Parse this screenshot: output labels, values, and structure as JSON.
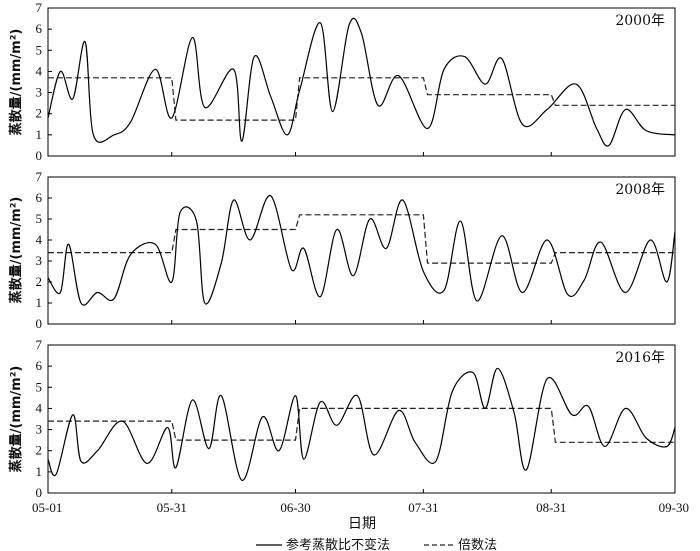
{
  "chart_data": {
    "type": "line",
    "xlabel": "日期",
    "ylabel": "蒸散量/(mm/m²)",
    "x_ticks": [
      "05-01",
      "05-31",
      "06-30",
      "07-31",
      "08-31",
      "09-30"
    ],
    "ylim": [
      0,
      7
    ],
    "y_ticks": [
      0,
      1,
      2,
      3,
      4,
      5,
      6,
      7
    ],
    "legend": [
      {
        "name": "参考蒸散比不变法",
        "style": "solid"
      },
      {
        "name": "倍数法",
        "style": "dashed"
      }
    ],
    "legend_position": "bottom-center",
    "panels": [
      {
        "title": "2000年",
        "dashed_steps": [
          {
            "from": "05-01",
            "to": "05-31",
            "value": 3.7
          },
          {
            "from": "06-01",
            "to": "06-30",
            "value": 1.7
          },
          {
            "from": "07-01",
            "to": "07-31",
            "value": 3.7
          },
          {
            "from": "08-01",
            "to": "08-31",
            "value": 2.9
          },
          {
            "from": "09-01",
            "to": "09-30",
            "value": 2.4
          }
        ],
        "solid_key_points": [
          [
            0,
            1.8
          ],
          [
            3,
            4.0
          ],
          [
            6,
            2.7
          ],
          [
            9,
            5.4
          ],
          [
            11,
            1.0
          ],
          [
            16,
            1.0
          ],
          [
            20,
            1.6
          ],
          [
            26,
            4.1
          ],
          [
            30,
            1.8
          ],
          [
            35,
            5.6
          ],
          [
            38,
            2.3
          ],
          [
            45,
            4.1
          ],
          [
            47,
            0.7
          ],
          [
            50,
            4.7
          ],
          [
            54,
            2.8
          ],
          [
            58,
            1.0
          ],
          [
            61,
            3.1
          ],
          [
            66,
            6.3
          ],
          [
            69,
            2.1
          ],
          [
            73,
            6.2
          ],
          [
            76,
            5.8
          ],
          [
            80,
            2.4
          ],
          [
            85,
            3.8
          ],
          [
            92,
            1.3
          ],
          [
            96,
            4.1
          ],
          [
            101,
            4.7
          ],
          [
            106,
            3.4
          ],
          [
            110,
            4.6
          ],
          [
            115,
            1.5
          ],
          [
            121,
            2.2
          ],
          [
            128,
            3.4
          ],
          [
            133,
            1.3
          ],
          [
            136,
            0.5
          ],
          [
            140,
            2.2
          ],
          [
            145,
            1.2
          ],
          [
            152,
            1.0
          ]
        ]
      },
      {
        "title": "2008年",
        "dashed_steps": [
          {
            "from": "05-01",
            "to": "05-31",
            "value": 3.4
          },
          {
            "from": "06-01",
            "to": "06-30",
            "value": 4.5
          },
          {
            "from": "07-01",
            "to": "07-31",
            "value": 5.2
          },
          {
            "from": "08-01",
            "to": "08-31",
            "value": 2.9
          },
          {
            "from": "09-01",
            "to": "09-30",
            "value": 3.4
          }
        ],
        "solid_key_points": [
          [
            0,
            2.2
          ],
          [
            3,
            1.5
          ],
          [
            5,
            3.8
          ],
          [
            8,
            1.0
          ],
          [
            12,
            1.5
          ],
          [
            16,
            1.2
          ],
          [
            20,
            3.3
          ],
          [
            26,
            3.8
          ],
          [
            30,
            2.0
          ],
          [
            32,
            5.3
          ],
          [
            36,
            4.9
          ],
          [
            38,
            1.0
          ],
          [
            42,
            2.9
          ],
          [
            45,
            5.9
          ],
          [
            49,
            4.0
          ],
          [
            54,
            6.1
          ],
          [
            59,
            2.6
          ],
          [
            62,
            3.6
          ],
          [
            66,
            1.3
          ],
          [
            70,
            4.5
          ],
          [
            74,
            2.3
          ],
          [
            78,
            5.0
          ],
          [
            82,
            3.6
          ],
          [
            86,
            5.9
          ],
          [
            91,
            2.5
          ],
          [
            96,
            1.6
          ],
          [
            100,
            4.9
          ],
          [
            104,
            1.1
          ],
          [
            110,
            4.2
          ],
          [
            115,
            1.5
          ],
          [
            121,
            4.0
          ],
          [
            126,
            1.4
          ],
          [
            130,
            2.1
          ],
          [
            134,
            3.9
          ],
          [
            140,
            1.5
          ],
          [
            146,
            4.0
          ],
          [
            150,
            2.0
          ],
          [
            152,
            4.4
          ]
        ]
      },
      {
        "title": "2016年",
        "dashed_steps": [
          {
            "from": "05-01",
            "to": "05-31",
            "value": 3.4
          },
          {
            "from": "06-01",
            "to": "06-30",
            "value": 2.5
          },
          {
            "from": "07-01",
            "to": "07-31",
            "value": 4.0
          },
          {
            "from": "08-01",
            "to": "08-31",
            "value": 4.0
          },
          {
            "from": "09-01",
            "to": "09-30",
            "value": 2.4
          }
        ],
        "solid_key_points": [
          [
            0,
            1.6
          ],
          [
            2,
            0.9
          ],
          [
            6,
            3.7
          ],
          [
            8,
            1.5
          ],
          [
            12,
            2.0
          ],
          [
            18,
            3.4
          ],
          [
            24,
            1.4
          ],
          [
            29,
            3.1
          ],
          [
            31,
            1.2
          ],
          [
            35,
            4.4
          ],
          [
            39,
            2.1
          ],
          [
            42,
            4.6
          ],
          [
            47,
            0.6
          ],
          [
            52,
            3.6
          ],
          [
            56,
            2.0
          ],
          [
            60,
            4.6
          ],
          [
            62,
            1.6
          ],
          [
            66,
            4.3
          ],
          [
            70,
            3.2
          ],
          [
            75,
            4.6
          ],
          [
            79,
            1.8
          ],
          [
            85,
            3.9
          ],
          [
            89,
            2.4
          ],
          [
            94,
            1.5
          ],
          [
            98,
            4.8
          ],
          [
            103,
            5.7
          ],
          [
            106,
            4.0
          ],
          [
            109,
            5.9
          ],
          [
            113,
            3.8
          ],
          [
            116,
            1.1
          ],
          [
            121,
            5.4
          ],
          [
            127,
            3.7
          ],
          [
            131,
            4.1
          ],
          [
            135,
            2.2
          ],
          [
            140,
            4.0
          ],
          [
            145,
            2.6
          ],
          [
            150,
            2.2
          ],
          [
            152,
            3.1
          ]
        ]
      }
    ]
  }
}
